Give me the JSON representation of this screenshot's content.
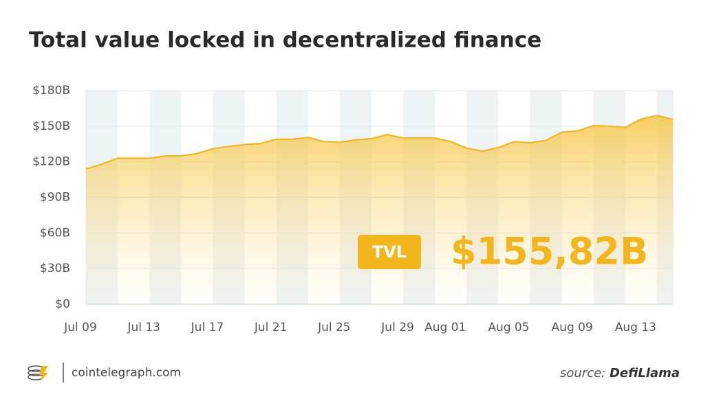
{
  "chart_data": {
    "type": "area",
    "title": "Total value locked in decentralized finance",
    "categories": [
      "Jul 09",
      null,
      null,
      null,
      "Jul 13",
      null,
      null,
      null,
      "Jul 17",
      null,
      null,
      null,
      "Jul 21",
      null,
      null,
      null,
      "Jul 25",
      null,
      null,
      null,
      "Jul 29",
      null,
      null,
      "Aug 01",
      null,
      null,
      null,
      "Aug 05",
      null,
      null,
      null,
      "Aug 09",
      null,
      null,
      null,
      "Aug 13",
      null,
      null
    ],
    "values": [
      114,
      118,
      123,
      123,
      123,
      125,
      125,
      127,
      131,
      133,
      134.5,
      135.5,
      139,
      139,
      140.5,
      137,
      136.5,
      138.5,
      139.5,
      143,
      140,
      140,
      140,
      137,
      131.5,
      129,
      132,
      137,
      136,
      138,
      145,
      146,
      150.5,
      150,
      149,
      156,
      159,
      155.82
    ],
    "color": "#f2b51c",
    "ylim": [
      0,
      180
    ],
    "yticks": [
      {
        "value": 0,
        "label": "$0"
      },
      {
        "value": 30,
        "label": "$30B"
      },
      {
        "value": 60,
        "label": "$60B"
      },
      {
        "value": 90,
        "label": "$90B"
      },
      {
        "value": 120,
        "label": "$120B"
      },
      {
        "value": 150,
        "label": "$150B"
      },
      {
        "value": 180,
        "label": "$180B"
      }
    ],
    "grid": true,
    "annotation": {
      "badge": "TVL",
      "text": "$155,82B"
    }
  },
  "footer": {
    "site": "cointelegraph.com",
    "source_prefix": "source:",
    "source": "DefiLlama"
  }
}
